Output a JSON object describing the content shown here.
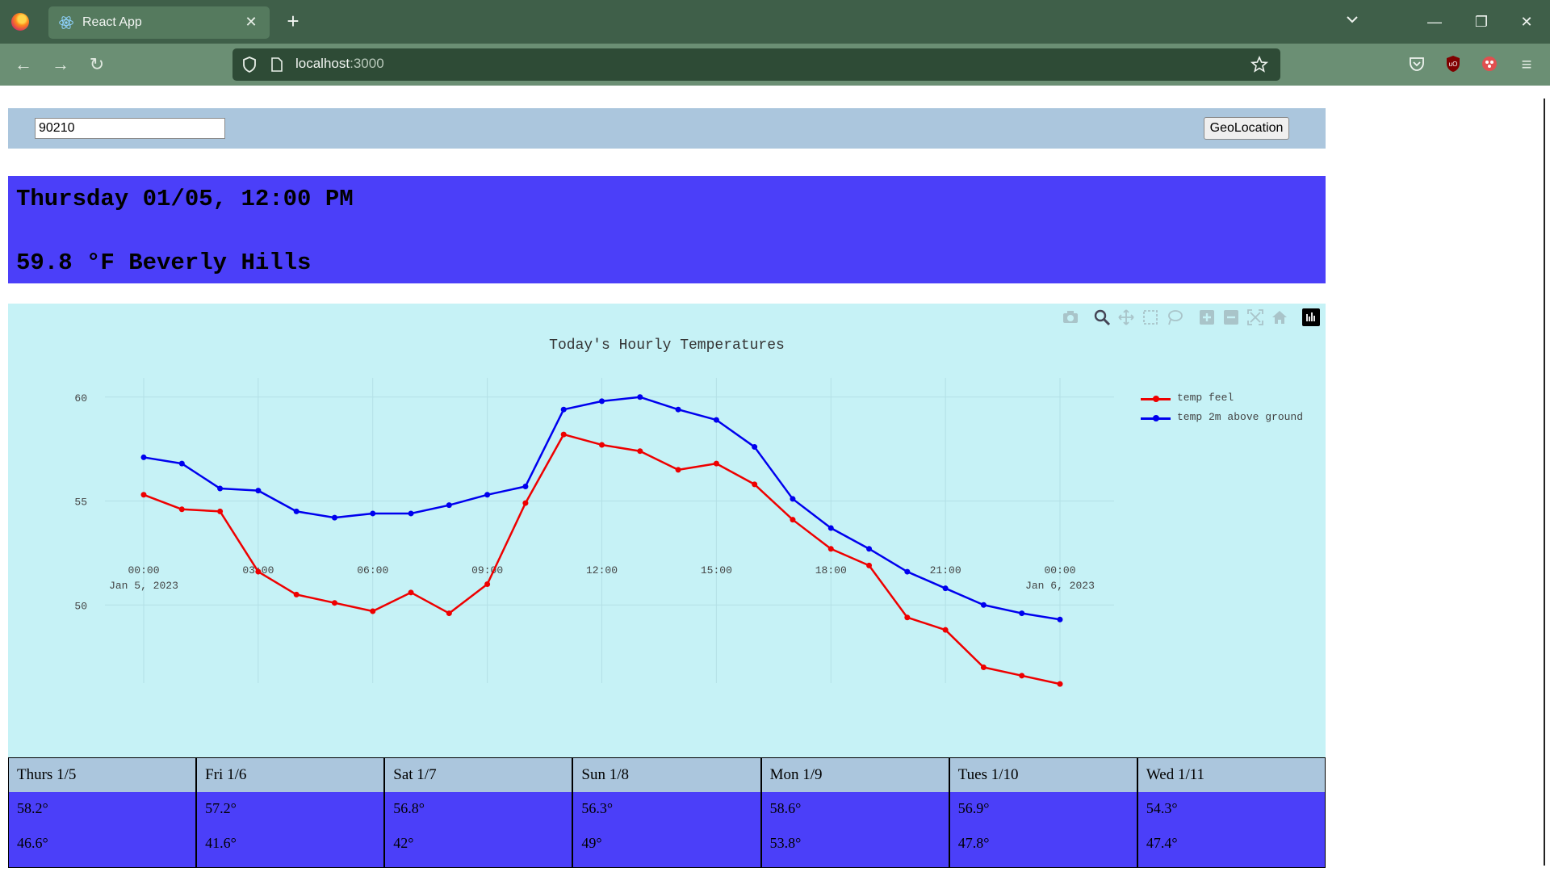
{
  "browser": {
    "tab_title": "React App",
    "url_host": "localhost",
    "url_port": ":3000"
  },
  "app": {
    "zip_value": "90210",
    "geo_button_label": "GeoLocation",
    "current_datetime": "Thursday 01/05, 12:00 PM",
    "current_temp_location": "59.8 °F Beverly Hills"
  },
  "chart_data": {
    "type": "line",
    "title": "Today's Hourly Temperatures",
    "xlabel": "",
    "ylabel": "",
    "x": [
      "2023-01-05 00:00",
      "2023-01-05 01:00",
      "2023-01-05 02:00",
      "2023-01-05 03:00",
      "2023-01-05 04:00",
      "2023-01-05 05:00",
      "2023-01-05 06:00",
      "2023-01-05 07:00",
      "2023-01-05 08:00",
      "2023-01-05 09:00",
      "2023-01-05 10:00",
      "2023-01-05 11:00",
      "2023-01-05 12:00",
      "2023-01-05 13:00",
      "2023-01-05 14:00",
      "2023-01-05 15:00",
      "2023-01-05 16:00",
      "2023-01-05 17:00",
      "2023-01-05 18:00",
      "2023-01-05 19:00",
      "2023-01-05 20:00",
      "2023-01-05 21:00",
      "2023-01-05 22:00",
      "2023-01-05 23:00",
      "2023-01-06 00:00"
    ],
    "xtick_labels": [
      {
        "at": "2023-01-05 00:00",
        "lines": [
          "00:00",
          "Jan 5, 2023"
        ]
      },
      {
        "at": "2023-01-05 03:00",
        "lines": [
          "03:00"
        ]
      },
      {
        "at": "2023-01-05 06:00",
        "lines": [
          "06:00"
        ]
      },
      {
        "at": "2023-01-05 09:00",
        "lines": [
          "09:00"
        ]
      },
      {
        "at": "2023-01-05 12:00",
        "lines": [
          "12:00"
        ]
      },
      {
        "at": "2023-01-05 15:00",
        "lines": [
          "15:00"
        ]
      },
      {
        "at": "2023-01-05 18:00",
        "lines": [
          "18:00"
        ]
      },
      {
        "at": "2023-01-05 21:00",
        "lines": [
          "21:00"
        ]
      },
      {
        "at": "2023-01-06 00:00",
        "lines": [
          "00:00",
          "Jan 6, 2023"
        ]
      }
    ],
    "yticks": [
      50,
      55,
      60
    ],
    "ylim": [
      45.7,
      61.0
    ],
    "grid": true,
    "legend_position": "top-right",
    "series": [
      {
        "name": "temp feel",
        "color": "#ee0000",
        "values": [
          55.3,
          54.6,
          54.5,
          51.6,
          50.5,
          50.1,
          49.7,
          50.6,
          49.6,
          51.0,
          54.9,
          58.2,
          57.7,
          57.4,
          56.5,
          56.8,
          55.8,
          54.1,
          52.7,
          51.9,
          49.4,
          48.8,
          47.0,
          46.6,
          46.2
        ]
      },
      {
        "name": "temp 2m above ground",
        "color": "#0000ee",
        "values": [
          57.1,
          56.8,
          55.6,
          55.5,
          54.5,
          54.2,
          54.4,
          54.4,
          54.8,
          55.3,
          55.7,
          59.4,
          59.8,
          60.0,
          59.4,
          58.9,
          57.6,
          55.1,
          53.7,
          52.7,
          51.6,
          50.8,
          50.0,
          49.6,
          49.3
        ]
      }
    ]
  },
  "forecast": [
    {
      "day": "Thurs 1/5",
      "high": "58.2°",
      "low": "46.6°"
    },
    {
      "day": "Fri 1/6",
      "high": "57.2°",
      "low": "41.6°"
    },
    {
      "day": "Sat 1/7",
      "high": "56.8°",
      "low": "42°"
    },
    {
      "day": "Sun 1/8",
      "high": "56.3°",
      "low": "49°"
    },
    {
      "day": "Mon 1/9",
      "high": "58.6°",
      "low": "53.8°"
    },
    {
      "day": "Tues 1/10",
      "high": "56.9°",
      "low": "47.8°"
    },
    {
      "day": "Wed 1/11",
      "high": "54.3°",
      "low": "47.4°"
    }
  ],
  "colors": {
    "tabbar": "#3f5f49",
    "navbar": "#6b8f74",
    "header_blue": "#4b3ff9",
    "steel": "#abc6dd",
    "chart_bg": "#c6f2f6"
  }
}
